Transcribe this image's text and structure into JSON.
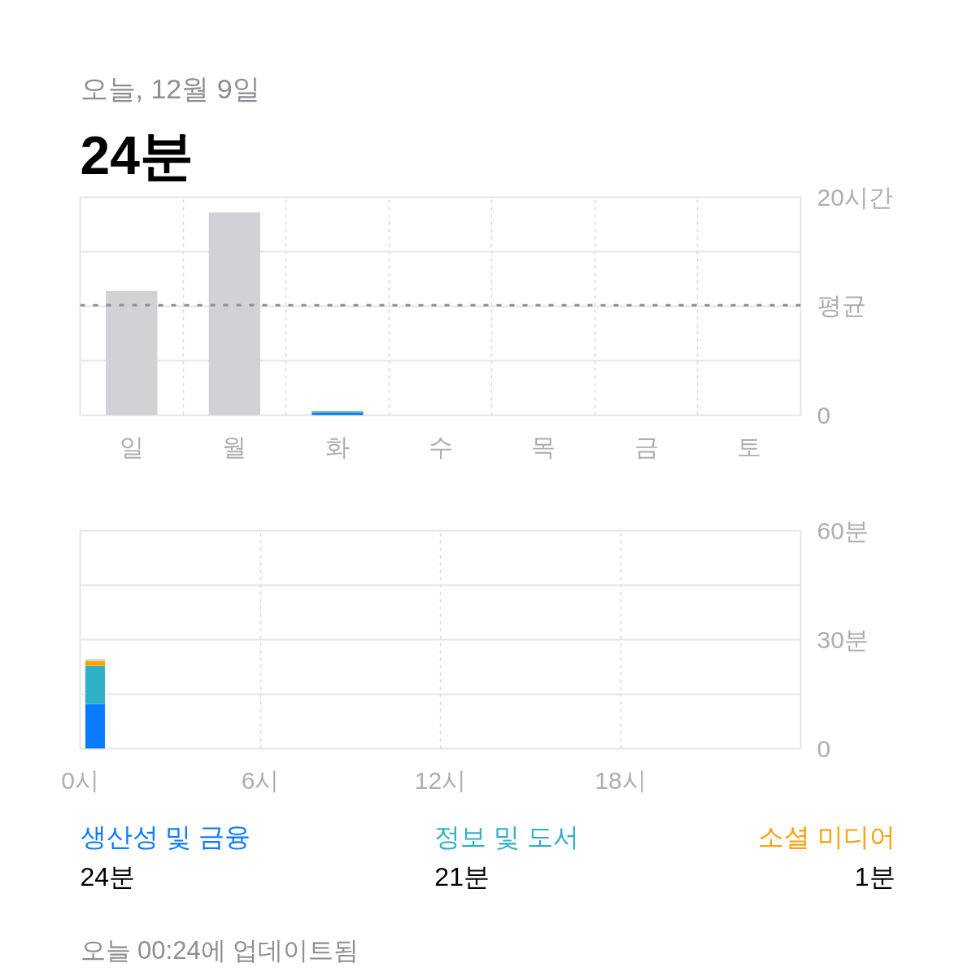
{
  "chart_data": [
    {
      "type": "bar",
      "title": "24분",
      "subtitle": "오늘, 12월 9일",
      "categories": [
        "일",
        "월",
        "화",
        "수",
        "목",
        "금",
        "토"
      ],
      "stacked": true,
      "series": [
        {
          "color": "#d1d1d6",
          "values": [
            11.4,
            18.6,
            null,
            null,
            null,
            null,
            null
          ]
        },
        {
          "color": "#0a7aff",
          "values": [
            null,
            null,
            0.2,
            null,
            null,
            null,
            null
          ]
        },
        {
          "color": "#30b0c7",
          "values": [
            null,
            null,
            0.15,
            null,
            null,
            null,
            null
          ]
        },
        {
          "color": "#ff9f0a",
          "values": [
            null,
            null,
            0.05,
            null,
            null,
            null,
            null
          ]
        }
      ],
      "ylim": [
        0,
        20
      ],
      "yticks": [
        0,
        {
          "value": 5,
          "label": null
        },
        {
          "value": 10,
          "label": null
        },
        {
          "value": 15,
          "label": null
        },
        {
          "value": 20,
          "label": "20시간"
        }
      ],
      "ref_lines": [
        {
          "axis": "y",
          "value": 10.1,
          "label": "평균",
          "color": "#8e8e93",
          "line_style": "dotted"
        }
      ],
      "grid": true
    },
    {
      "type": "bar",
      "x": [
        0.5
      ],
      "stacked": true,
      "series": [
        {
          "name": "생산성 및 금융",
          "color": "#0a7aff",
          "values": [
            12.3
          ]
        },
        {
          "name": "정보 및 도서",
          "color": "#30b0c7",
          "values": [
            10.5
          ]
        },
        {
          "name": "소셜 미디어",
          "color": "#ff9f0a",
          "values": [
            1.3
          ]
        },
        {
          "color": "#d1d1d6",
          "values": [
            0.6
          ]
        }
      ],
      "xlim": [
        0,
        24
      ],
      "xticks": [
        {
          "value": 0,
          "label": "0시"
        },
        {
          "value": 6,
          "label": "6시"
        },
        {
          "value": 12,
          "label": "12시"
        },
        {
          "value": 18,
          "label": "18시"
        },
        {
          "value": 24,
          "label": null
        }
      ],
      "ylim": [
        0,
        60
      ],
      "yticks": [
        0,
        {
          "value": 15,
          "label": null
        },
        {
          "value": 30,
          "label": "30분"
        },
        {
          "value": 45,
          "label": null
        },
        {
          "value": 60,
          "label": "60분"
        }
      ],
      "grid": true,
      "annotations": [
        "24분",
        "21분",
        "1분",
        "오늘 00:24에 업데이트됨"
      ]
    }
  ]
}
